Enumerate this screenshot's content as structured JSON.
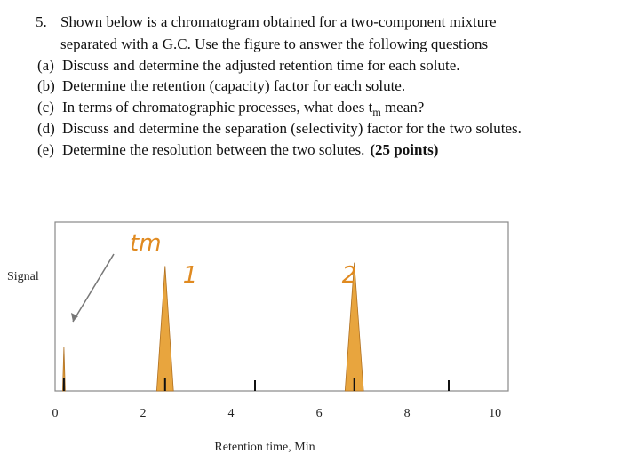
{
  "question": {
    "number": "5.",
    "intro": [
      "Shown below is a chromatogram obtained for a two-component mixture",
      "separated with a G.C. Use the figure to answer the following questions"
    ],
    "parts": [
      {
        "label": "(a)",
        "text": "Discuss and determine the adjusted retention time for each solute."
      },
      {
        "label": "(b)",
        "text": "Determine the retention (capacity) factor for each solute."
      },
      {
        "label": "(c)",
        "text": "In terms of chromatographic processes, what does t",
        "subscript": "m",
        "text_after": " mean?"
      },
      {
        "label": "(d)",
        "text": "Discuss and determine the separation (selectivity) factor for the two solutes."
      },
      {
        "label": "(e)",
        "text": "Determine the resolution between the two solutes.",
        "points": "(25 points)"
      }
    ]
  },
  "chart_data": {
    "type": "chromatogram",
    "ylabel": "Signal",
    "xlabel": "Retention time, Min",
    "xlim": [
      0,
      10.3
    ],
    "xticks": [
      0,
      2,
      4,
      6,
      8,
      10
    ],
    "ylim": [
      0,
      1
    ],
    "peaks": [
      {
        "name": "tm",
        "retention": 0.2,
        "height": 0.26,
        "base_width": 0.06,
        "color": "#e8a53e"
      },
      {
        "name": "1",
        "retention": 2.5,
        "height": 0.74,
        "base_width": 0.38,
        "color": "#e8a53e"
      },
      {
        "name": "2",
        "retention": 6.8,
        "height": 0.76,
        "base_width": 0.42,
        "color": "#e8a53e"
      }
    ]
  }
}
